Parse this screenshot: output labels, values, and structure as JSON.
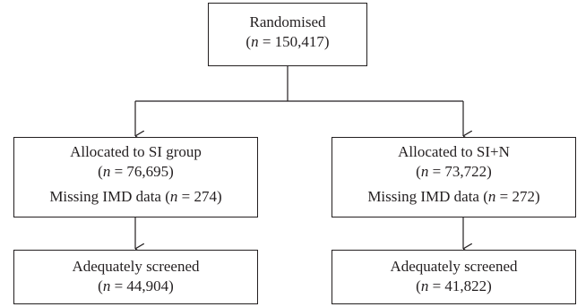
{
  "randomised": {
    "label": "Randomised",
    "n_symbol": "n",
    "n_value": "150,417"
  },
  "si_group": {
    "label": "Allocated to SI group",
    "n_symbol": "n",
    "n_value": "76,695",
    "missing_label": "Missing IMD data",
    "missing_value": "274"
  },
  "sin_group": {
    "label": "Allocated to SI+N",
    "n_symbol": "n",
    "n_value": "73,722",
    "missing_label": "Missing IMD data",
    "missing_value": "272"
  },
  "si_screened": {
    "label": "Adequately screened",
    "n_symbol": "n",
    "n_value": "44,904"
  },
  "sin_screened": {
    "label": "Adequately screened",
    "n_symbol": "n",
    "n_value": "41,822"
  }
}
